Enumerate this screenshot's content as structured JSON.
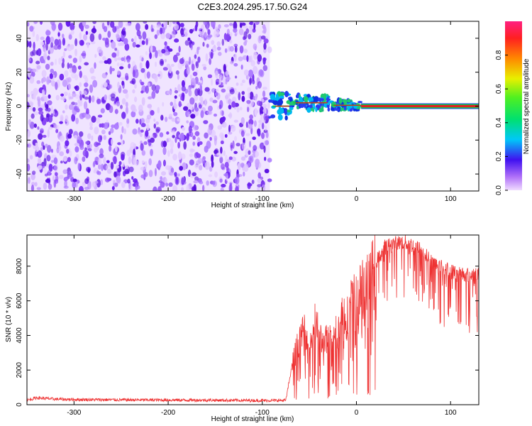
{
  "title": "C2E3.2024.295.17.50.G24",
  "colors": {
    "snr_line": "#ee3333",
    "spectrogram_noise": "#7a2cf0",
    "tone_core": "#e02020",
    "tone_edge": "#20c040"
  },
  "chart_data": [
    {
      "type": "heatmap",
      "title": "C2E3.2024.295.17.50.G24",
      "xlabel": "Height of straight line (km)",
      "ylabel": "Frequency (Hz)",
      "xlim": [
        -350,
        130
      ],
      "ylim": [
        -50,
        50
      ],
      "xticks": [
        -300,
        -200,
        -100,
        0,
        100
      ],
      "yticks": [
        -40,
        -20,
        0,
        20,
        40
      ],
      "grid": false,
      "noise_region_x": [
        -350,
        -92
      ],
      "tone_segments": [
        {
          "x": [
            -92,
            -70
          ],
          "freq": 0,
          "spread": 5
        },
        {
          "x": [
            -70,
            -30
          ],
          "freq": 2,
          "spread": 3
        },
        {
          "x": [
            -30,
            5
          ],
          "freq": 0.5,
          "spread": 2
        },
        {
          "x": [
            5,
            130
          ],
          "freq": 0,
          "spread": 1.5
        }
      ],
      "colorbar": {
        "label": "Normalized spectral amplitude",
        "range": [
          0,
          1
        ],
        "ticks": [
          "0.0",
          "0.2",
          "0.4",
          "0.6",
          "0.8"
        ],
        "tick_values": [
          0.0,
          0.2,
          0.4,
          0.6,
          0.8
        ]
      }
    },
    {
      "type": "line",
      "xlabel": "Height of straight line (km)",
      "ylabel": "SNR (10 * v/v)",
      "xlim": [
        -350,
        130
      ],
      "ylim": [
        0,
        9800
      ],
      "xticks": [
        -300,
        -200,
        -100,
        0,
        100
      ],
      "yticks": [
        0,
        2000,
        4000,
        6000,
        8000
      ],
      "grid": false,
      "series": [
        {
          "x": [
            -350,
            -340,
            -320,
            -300,
            -250,
            -200,
            -150,
            -100,
            -75,
            -68,
            -64,
            -60,
            -55,
            -50,
            -45,
            -40,
            -35,
            -30,
            -25,
            -20,
            -15,
            -10,
            -5,
            0,
            5,
            10,
            15,
            20,
            25,
            30,
            40,
            50,
            60,
            70,
            80,
            90,
            100,
            110,
            120,
            130
          ],
          "values": [
            250,
            400,
            320,
            300,
            280,
            270,
            260,
            240,
            250,
            2400,
            3300,
            3700,
            4500,
            3200,
            5000,
            4200,
            3500,
            4000,
            3900,
            4500,
            5500,
            5100,
            6200,
            6400,
            6700,
            7200,
            7600,
            8200,
            8600,
            9100,
            9300,
            9400,
            9200,
            8900,
            8200,
            8000,
            7700,
            7600,
            7500,
            7600
          ]
        }
      ]
    }
  ]
}
